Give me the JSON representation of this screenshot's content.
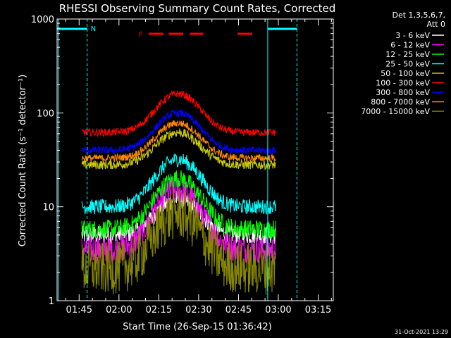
{
  "chart_data": {
    "type": "line",
    "title": "RHESSI Observing Summary Count Rates, Corrected",
    "xlabel": "Start Time (26-Sep-15 01:36:42)",
    "ylabel": "Corrected Count Rate (s⁻¹ detector⁻¹)",
    "yscale": "log",
    "xlim_min": [
      0,
      104
    ],
    "ylim": [
      1,
      1000
    ],
    "x_ticks": [
      {
        "label": "01:45",
        "t": 8.3
      },
      {
        "label": "02:00",
        "t": 23.3
      },
      {
        "label": "02:15",
        "t": 38.3
      },
      {
        "label": "02:30",
        "t": 53.3
      },
      {
        "label": "02:45",
        "t": 68.3
      },
      {
        "label": "03:00",
        "t": 83.3
      },
      {
        "label": "03:15",
        "t": 98.3
      }
    ],
    "y_ticks": [
      {
        "label": "1",
        "v": 1
      },
      {
        "label": "10",
        "v": 10
      },
      {
        "label": "100",
        "v": 100
      },
      {
        "label": "1000",
        "v": 1000
      }
    ],
    "legend_title": [
      "Det 1,3,5,6,7,",
      "Att 0"
    ],
    "series": [
      {
        "name": "3 - 6 keV",
        "color": "#ffffff",
        "base": 5.0,
        "peak": 12,
        "noise": 0.1
      },
      {
        "name": "6 - 12 keV",
        "color": "#ff00ff",
        "base": 3.5,
        "peak": 15,
        "noise": 0.15
      },
      {
        "name": "12 - 25 keV",
        "color": "#00ff00",
        "base": 5.8,
        "peak": 20,
        "noise": 0.1
      },
      {
        "name": "25 - 50 keV",
        "color": "#00ffff",
        "base": 10,
        "peak": 32,
        "noise": 0.08
      },
      {
        "name": "50 - 100 keV",
        "color": "#cccc00",
        "base": 28,
        "peak": 62,
        "noise": 0.05
      },
      {
        "name": "100 - 300 keV",
        "color": "#ff0000",
        "base": 62,
        "peak": 160,
        "noise": 0.04
      },
      {
        "name": "300 - 800 keV",
        "color": "#0000ff",
        "base": 40,
        "peak": 100,
        "noise": 0.04
      },
      {
        "name": "800 - 7000 keV",
        "color": "#ff8800",
        "base": 33,
        "peak": 78,
        "noise": 0.04
      },
      {
        "name": "7000 - 15000 keV",
        "color": "#888800",
        "base": 2.2,
        "peak": 8.5,
        "noise": 0.28
      }
    ],
    "data_start_min": 9.3,
    "data_end_min": 82.3,
    "peak_min": 45.5,
    "peak_width_min": 10,
    "annotations": {
      "night_label": "N",
      "flare_label": "F",
      "night_intervals_min": [
        [
          0,
          11.3
        ],
        [
          79.3,
          90.3
        ]
      ],
      "flare_intervals_min": [
        [
          34.5,
          40.0
        ],
        [
          42.0,
          47.5
        ],
        [
          50.0,
          55.0
        ],
        [
          68.0,
          73.5
        ]
      ],
      "cyan_lines_min": [
        0.5,
        11.3,
        79.3,
        90.3
      ],
      "dashed_lines_min": [
        11.3,
        90.3
      ]
    },
    "timestamp": "31-Oct-2021 13:29"
  }
}
